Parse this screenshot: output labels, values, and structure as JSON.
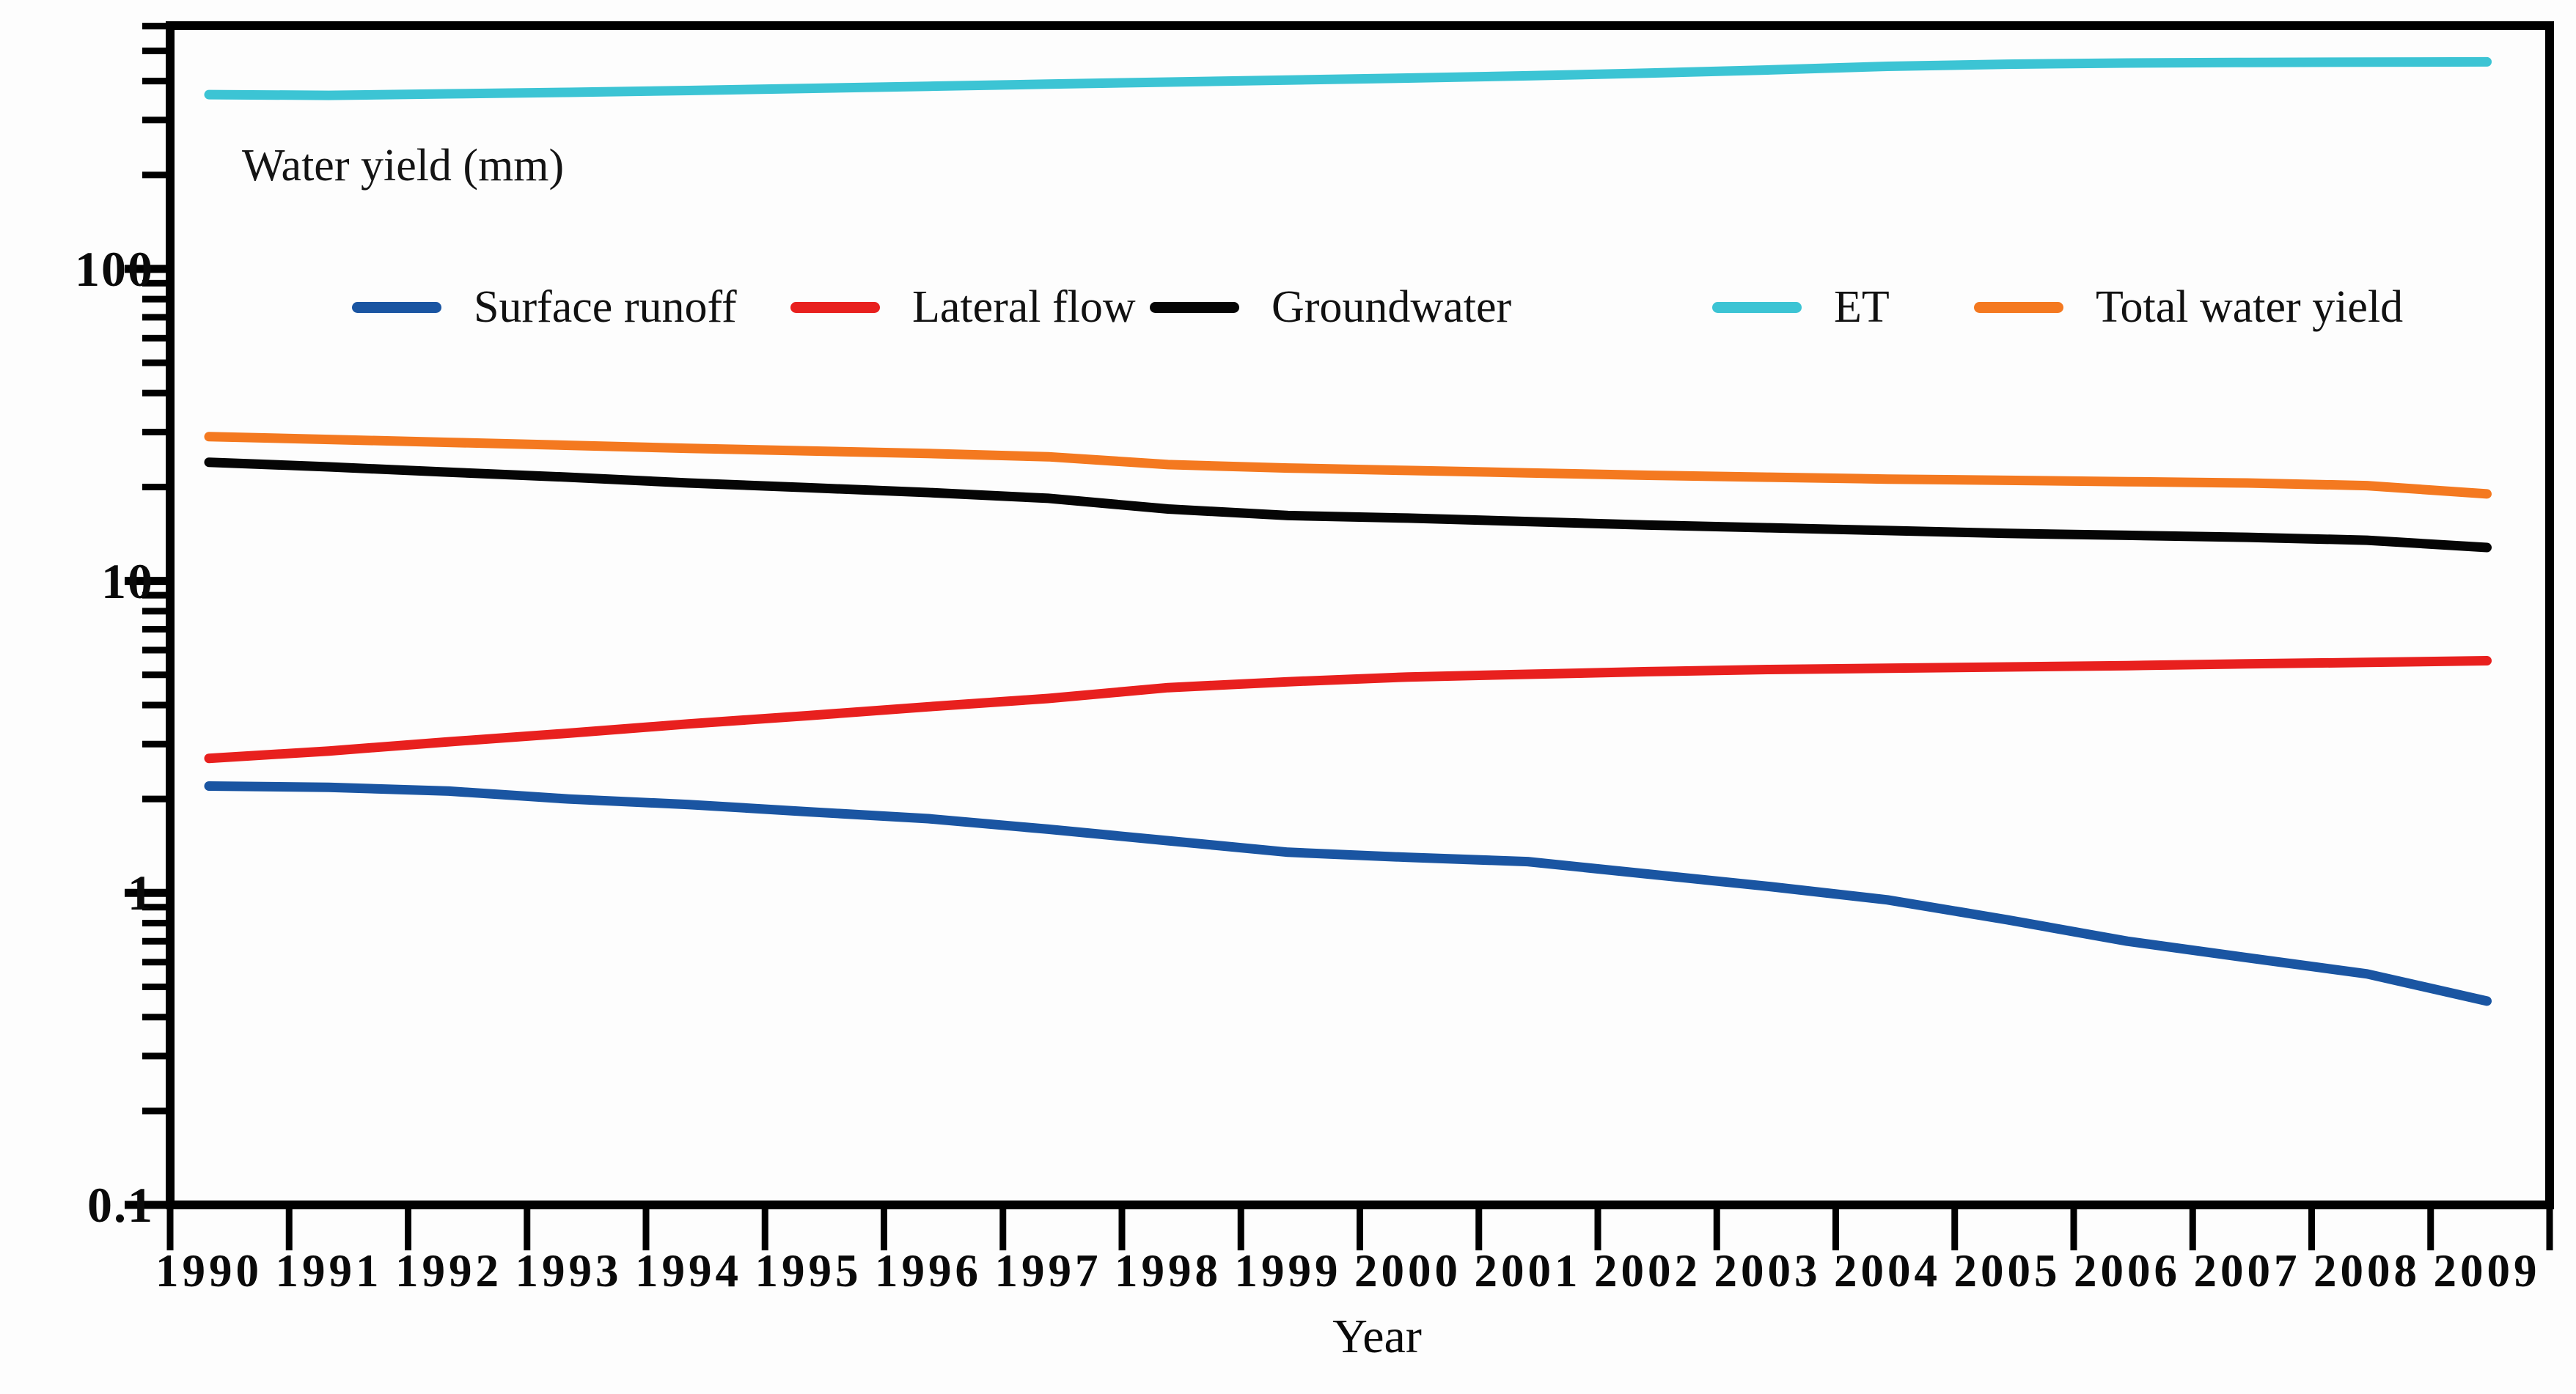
{
  "title": "Water yield (mm)",
  "x_axis": {
    "label": "Year"
  },
  "y_axis": {
    "tick_labels": [
      "100",
      "10",
      "1",
      "0.1"
    ]
  },
  "chart_data": {
    "type": "line",
    "title": "Water yield (mm)",
    "xlabel": "Year",
    "ylabel": "Water yield (mm)",
    "y_scale": "log10",
    "ylim": [
      0.1,
      620
    ],
    "grid": false,
    "legend_position": "top-inside-horizontal",
    "x": [
      1990,
      1991,
      1992,
      1993,
      1994,
      1995,
      1996,
      1997,
      1998,
      1999,
      2000,
      2001,
      2002,
      2003,
      2004,
      2005,
      2006,
      2007,
      2008,
      2009
    ],
    "y_major_ticks": [
      100,
      10,
      1,
      0.1
    ],
    "series": [
      {
        "name": "Surface runoff",
        "color": "#1a55a2",
        "values": [
          2.2,
          2.18,
          2.12,
          2.0,
          1.92,
          1.82,
          1.73,
          1.6,
          1.47,
          1.35,
          1.3,
          1.26,
          1.15,
          1.05,
          0.95,
          0.82,
          0.7,
          0.62,
          0.55,
          0.45
        ]
      },
      {
        "name": "Lateral flow",
        "color": "#e8201e",
        "values": [
          2.7,
          2.85,
          3.05,
          3.25,
          3.48,
          3.7,
          3.95,
          4.2,
          4.55,
          4.75,
          4.92,
          5.02,
          5.12,
          5.2,
          5.25,
          5.3,
          5.35,
          5.42,
          5.48,
          5.55
        ]
      },
      {
        "name": "Groundwater",
        "color": "#050505",
        "values": [
          24.0,
          23.2,
          22.3,
          21.5,
          20.6,
          19.9,
          19.2,
          18.4,
          17.0,
          16.2,
          15.9,
          15.5,
          15.1,
          14.8,
          14.5,
          14.2,
          14.0,
          13.8,
          13.5,
          12.8
        ]
      },
      {
        "name": "ET",
        "color": "#3cc4d4",
        "values": [
          362,
          360,
          364,
          368,
          373,
          379,
          385,
          391,
          397,
          403,
          409,
          416,
          424,
          434,
          446,
          453,
          457,
          459,
          460,
          461
        ]
      },
      {
        "name": "Total water yield",
        "color": "#f47920",
        "values": [
          29.0,
          28.4,
          27.8,
          27.2,
          26.6,
          26.1,
          25.6,
          25.0,
          23.6,
          23.0,
          22.6,
          22.2,
          21.8,
          21.5,
          21.2,
          21.0,
          20.8,
          20.6,
          20.2,
          19.0
        ]
      }
    ]
  }
}
